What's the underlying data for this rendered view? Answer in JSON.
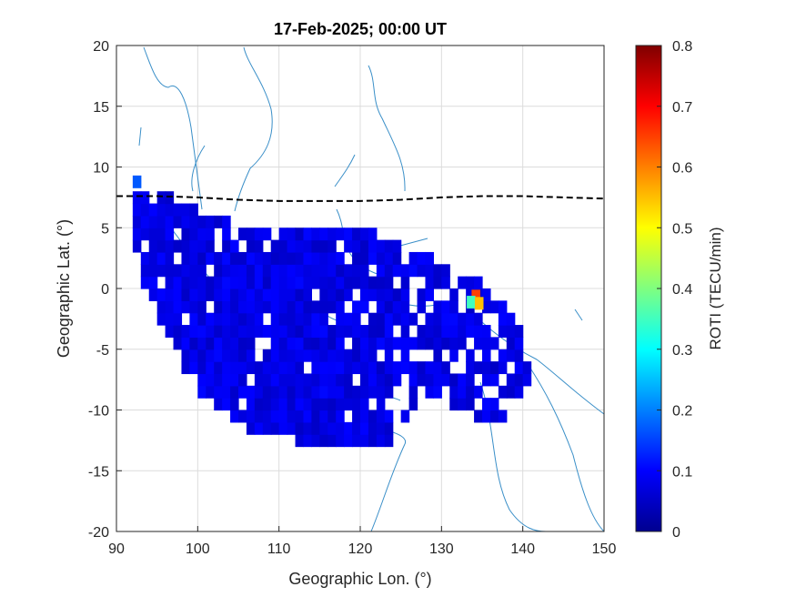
{
  "chart_data": {
    "type": "heatmap",
    "title": "17-Feb-2025; 00:00 UT",
    "xlabel": "Geographic Lon. (°)",
    "ylabel": "Geographic Lat. (°)",
    "xlim": [
      90,
      150
    ],
    "ylim": [
      -20,
      20
    ],
    "xticks": [
      "90",
      "100",
      "110",
      "120",
      "130",
      "140",
      "150"
    ],
    "yticks": [
      "20",
      "15",
      "10",
      "5",
      "0",
      "-5",
      "-10",
      "-15",
      "-20"
    ],
    "grid": true,
    "colorbar": {
      "label": "ROTI (TECU/min)",
      "range": [
        0,
        0.8
      ],
      "ticks": [
        "0.8",
        "0.7",
        "0.6",
        "0.5",
        "0.4",
        "0.3",
        "0.2",
        "0.1",
        "0"
      ],
      "colormap": "jet"
    },
    "magnetic_equator": {
      "style": "black dashed",
      "lon": [
        90,
        95,
        100,
        105,
        110,
        115,
        120,
        125,
        130,
        135,
        140,
        145,
        150
      ],
      "lat": [
        7.6,
        7.6,
        7.5,
        7.3,
        7.2,
        7.2,
        7.2,
        7.3,
        7.5,
        7.6,
        7.6,
        7.5,
        7.4
      ]
    },
    "notable_cells": [
      {
        "lon": 92.5,
        "lat": 8.8,
        "roti": 0.17
      },
      {
        "lon": 134.2,
        "lat": -0.6,
        "roti": 0.65
      },
      {
        "lon": 133.6,
        "lat": -1.1,
        "roti": 0.35
      },
      {
        "lon": 134.6,
        "lat": -1.2,
        "roti": 0.55
      }
    ],
    "background_roti": 0.08
  }
}
